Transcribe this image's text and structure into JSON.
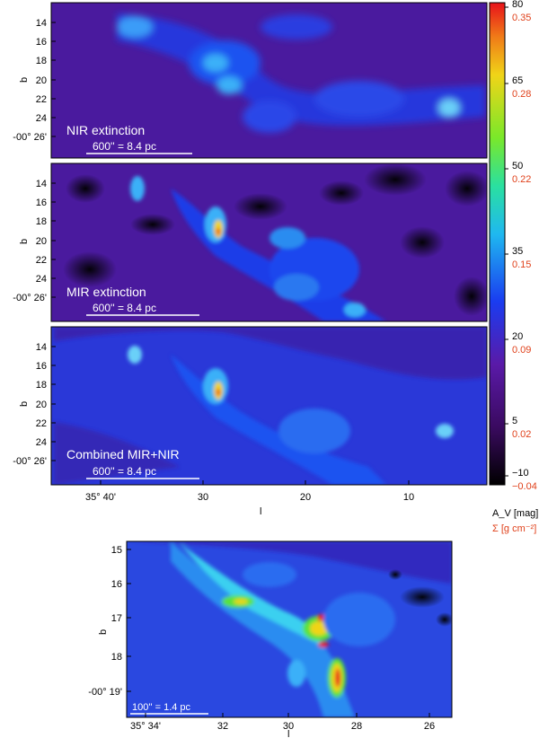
{
  "chart_data": [
    {
      "type": "heatmap",
      "panel": "NIR",
      "label": "NIR extinction",
      "scale_bar": "600'' = 8.4 pc",
      "ylabel": "b",
      "y_ticks": [
        "14",
        "16",
        "18",
        "20",
        "22",
        "24",
        "-00° 26'"
      ]
    },
    {
      "type": "heatmap",
      "panel": "MIR",
      "label": "MIR extinction",
      "scale_bar": "600'' = 8.4 pc",
      "ylabel": "b",
      "y_ticks": [
        "14",
        "16",
        "18",
        "20",
        "22",
        "24",
        "-00° 26'"
      ]
    },
    {
      "type": "heatmap",
      "panel": "Combined",
      "label": "Combined MIR+NIR",
      "scale_bar": "600'' = 8.4 pc",
      "ylabel": "b",
      "xlabel": "l",
      "y_ticks": [
        "14",
        "16",
        "18",
        "20",
        "22",
        "24",
        "-00° 26'"
      ],
      "x_ticks": [
        "35° 40'",
        "30",
        "20",
        "10"
      ]
    },
    {
      "type": "heatmap",
      "panel": "Zoom",
      "scale_bar": "100'' = 1.4 pc",
      "ylabel": "b",
      "xlabel": "l",
      "y_ticks": [
        "15",
        "16",
        "17",
        "18",
        "-00° 19'"
      ],
      "x_ticks": [
        "35° 34'",
        "32",
        "30",
        "28",
        "26"
      ]
    }
  ],
  "colorbar": {
    "av_ticks": [
      "80",
      "65",
      "50",
      "35",
      "20",
      "5",
      "−10"
    ],
    "sigma_ticks": [
      "0.35",
      "0.28",
      "0.22",
      "0.15",
      "0.09",
      "0.02",
      "−0.04"
    ],
    "av_label": "A_V [mag]",
    "sigma_label": "Σ [g cm⁻²]",
    "colors": [
      "#e8121a",
      "#f0c418",
      "#58e23a",
      "#2ad6e8",
      "#1a3cf0",
      "#4a0e9a",
      "#000000"
    ]
  }
}
